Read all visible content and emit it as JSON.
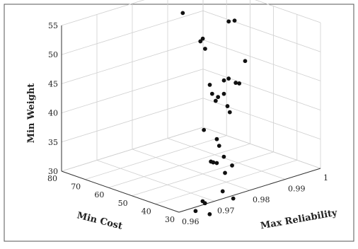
{
  "chart_data": {
    "type": "scatter3d",
    "title": "",
    "xlabel": "Min Cost",
    "ylabel": "Max Reliability",
    "zlabel": "Min Weight",
    "x_ticks": [
      "30",
      "40",
      "50",
      "60",
      "70",
      "80"
    ],
    "y_ticks": [
      "0.96",
      "0.97",
      "0.98",
      "0.99",
      "1"
    ],
    "z_ticks": [
      "30",
      "35",
      "40",
      "45",
      "50",
      "55"
    ],
    "xlim": [
      30,
      80
    ],
    "ylim": [
      0.96,
      1.0
    ],
    "zlim": [
      30,
      55
    ],
    "grid": true,
    "points": [
      {
        "x": 62,
        "y": 0.982,
        "z": 65.0
      },
      {
        "x": 56,
        "y": 0.979,
        "z": 61.5
      },
      {
        "x": 54,
        "y": 0.977,
        "z": 57.6
      },
      {
        "x": 48,
        "y": 0.986,
        "z": 55.3
      },
      {
        "x": 47,
        "y": 0.987,
        "z": 55.4
      },
      {
        "x": 50,
        "y": 0.98,
        "z": 53.2
      },
      {
        "x": 51,
        "y": 0.98,
        "z": 52.6
      },
      {
        "x": 49,
        "y": 0.98,
        "z": 51.6
      },
      {
        "x": 41,
        "y": 0.986,
        "z": 49.5
      },
      {
        "x": 42,
        "y": 0.982,
        "z": 47.1
      },
      {
        "x": 44,
        "y": 0.982,
        "z": 46.5
      },
      {
        "x": 42,
        "y": 0.984,
        "z": 46.0
      },
      {
        "x": 42,
        "y": 0.985,
        "z": 45.7
      },
      {
        "x": 44,
        "y": 0.978,
        "z": 46.5
      },
      {
        "x": 41,
        "y": 0.98,
        "z": 45.0
      },
      {
        "x": 43,
        "y": 0.978,
        "z": 45.1
      },
      {
        "x": 42,
        "y": 0.979,
        "z": 44.5
      },
      {
        "x": 43,
        "y": 0.979,
        "z": 43.7
      },
      {
        "x": 41,
        "y": 0.981,
        "z": 42.7
      },
      {
        "x": 40,
        "y": 0.981,
        "z": 41.8
      },
      {
        "x": 42,
        "y": 0.975,
        "z": 39.6
      },
      {
        "x": 38,
        "y": 0.976,
        "z": 38.4
      },
      {
        "x": 37,
        "y": 0.976,
        "z": 37.4
      },
      {
        "x": 33,
        "y": 0.977,
        "z": 34.4
      },
      {
        "x": 35,
        "y": 0.976,
        "z": 35.8
      },
      {
        "x": 33,
        "y": 0.975,
        "z": 33.5
      },
      {
        "x": 35,
        "y": 0.974,
        "z": 35.1
      },
      {
        "x": 36,
        "y": 0.973,
        "z": 35.4
      },
      {
        "x": 35,
        "y": 0.973,
        "z": 35.4
      },
      {
        "x": 34,
        "y": 0.975,
        "z": 30.2
      },
      {
        "x": 31,
        "y": 0.976,
        "z": 29.2
      },
      {
        "x": 35,
        "y": 0.97,
        "z": 29.3
      },
      {
        "x": 34,
        "y": 0.97,
        "z": 29.1
      },
      {
        "x": 35,
        "y": 0.968,
        "z": 28.0
      },
      {
        "x": 32,
        "y": 0.97,
        "z": 27.5
      }
    ]
  }
}
